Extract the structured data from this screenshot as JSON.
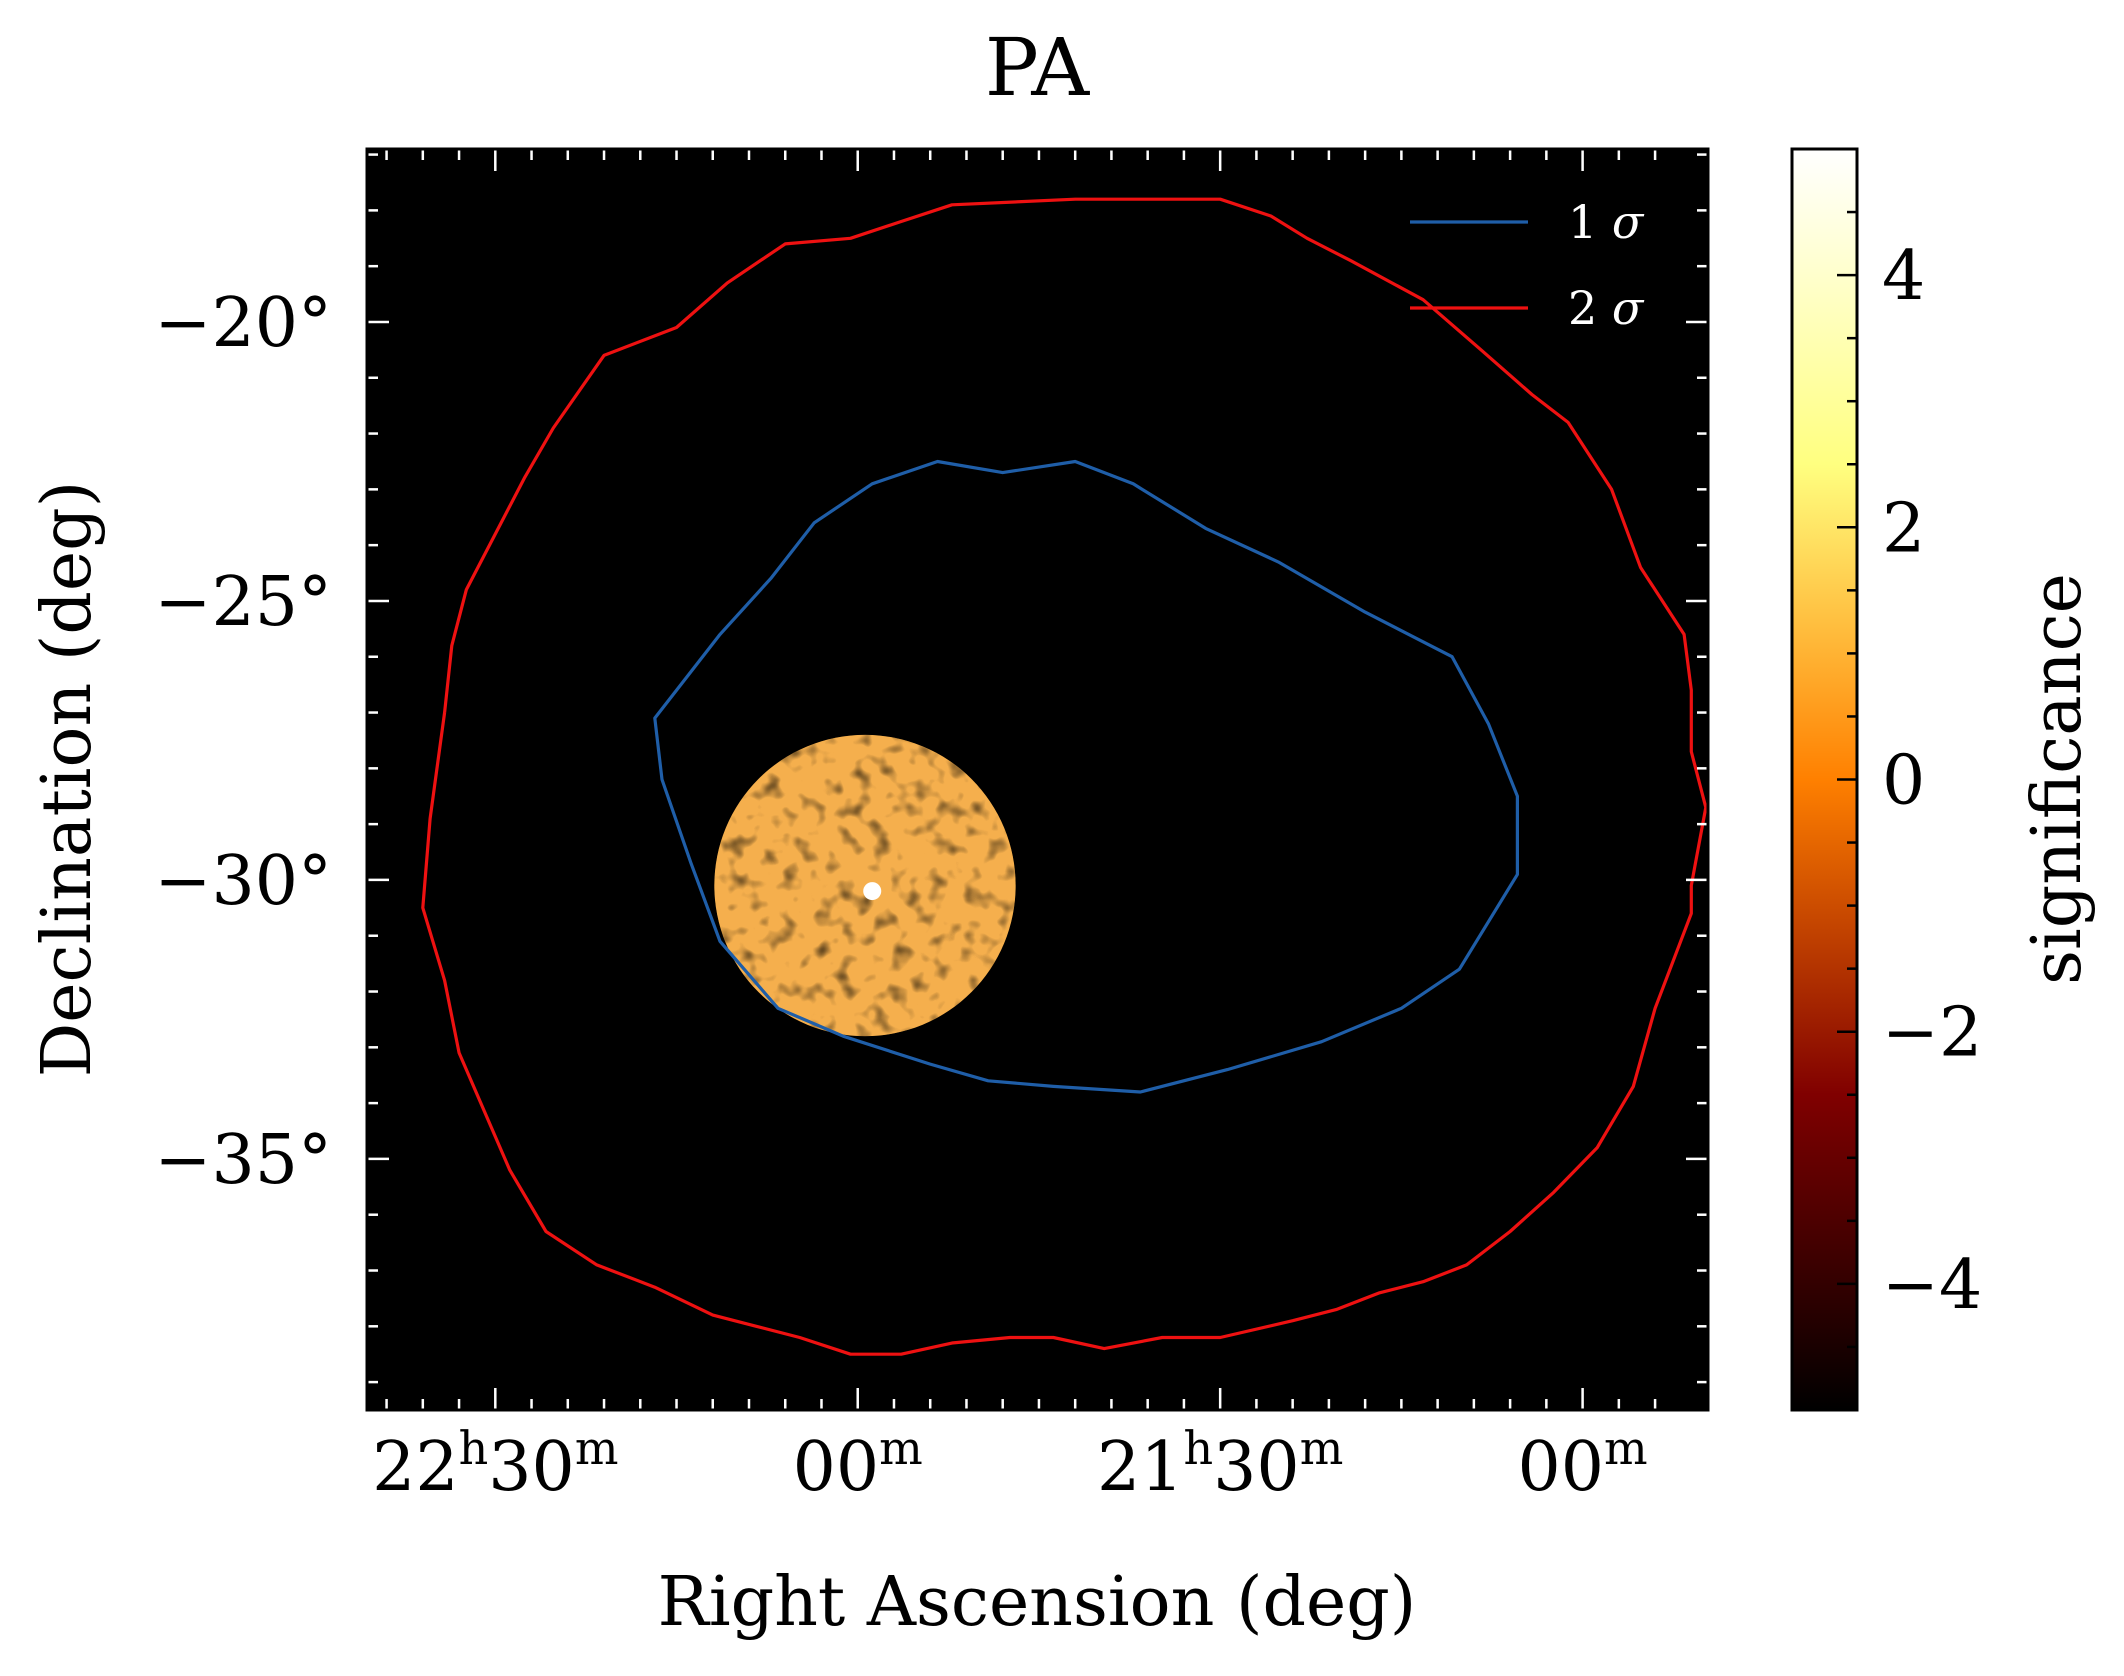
{
  "chart_data": {
    "type": "contour",
    "title": "PA",
    "xlabel": "Right Ascension (deg)",
    "ylabel": "Declination (deg)",
    "colorbar_label": "significance",
    "x_unit": "RA hours (decreasing to right)",
    "xlim": [
      22.677,
      20.827
    ],
    "ylim": [
      -39.5,
      -16.9
    ],
    "x_ticks": [
      {
        "value": 22.5,
        "label_main": "22",
        "label_sup1": "h",
        "label_mid": "30",
        "label_sup2": "m"
      },
      {
        "value": 22.0,
        "label_main": "",
        "label_sup1": "",
        "label_mid": "00",
        "label_sup2": "m"
      },
      {
        "value": 21.5,
        "label_main": "21",
        "label_sup1": "h",
        "label_mid": "30",
        "label_sup2": "m"
      },
      {
        "value": 21.0,
        "label_main": "",
        "label_sup1": "",
        "label_mid": "00",
        "label_sup2": "m"
      }
    ],
    "y_ticks": [
      {
        "value": -20,
        "label": "−20°"
      },
      {
        "value": -25,
        "label": "−25°"
      },
      {
        "value": -30,
        "label": "−30°"
      },
      {
        "value": -35,
        "label": "−35°"
      }
    ],
    "colorbar": {
      "vmin": -5,
      "vmax": 5,
      "colormap": "afmhot",
      "ticks": [
        {
          "value": 4,
          "label": "4"
        },
        {
          "value": 2,
          "label": "2"
        },
        {
          "value": 0,
          "label": "0"
        },
        {
          "value": -2,
          "label": "−2"
        },
        {
          "value": -4,
          "label": "−4"
        }
      ]
    },
    "background_color": "#000000",
    "significance_map": {
      "center_ra": 21.99,
      "center_dec": -30.1,
      "radius_deg": 2.7,
      "hotspot_ra": 21.98,
      "hotspot_dec": -30.2,
      "hotspot_value": 5.0
    },
    "legend": [
      {
        "label_main": "1",
        "label_sym": "σ",
        "color": "#1f5ea8"
      },
      {
        "label_main": "2",
        "label_sym": "σ",
        "color": "#ee1111"
      }
    ],
    "series": [
      {
        "name": "1 σ",
        "color": "#1f5ea8",
        "points": [
          [
            22.19,
            -25.6
          ],
          [
            22.12,
            -24.6
          ],
          [
            22.06,
            -23.6
          ],
          [
            21.98,
            -22.9
          ],
          [
            21.89,
            -22.5
          ],
          [
            21.8,
            -22.7
          ],
          [
            21.7,
            -22.5
          ],
          [
            21.62,
            -22.9
          ],
          [
            21.52,
            -23.7
          ],
          [
            21.42,
            -24.3
          ],
          [
            21.3,
            -25.2
          ],
          [
            21.18,
            -26.0
          ],
          [
            21.13,
            -27.2
          ],
          [
            21.09,
            -28.5
          ],
          [
            21.09,
            -29.9
          ],
          [
            21.17,
            -31.6
          ],
          [
            21.25,
            -32.3
          ],
          [
            21.36,
            -32.9
          ],
          [
            21.49,
            -33.4
          ],
          [
            21.61,
            -33.8
          ],
          [
            21.73,
            -33.7
          ],
          [
            21.82,
            -33.6
          ],
          [
            21.9,
            -33.3
          ],
          [
            22.02,
            -32.8
          ],
          [
            22.11,
            -32.3
          ],
          [
            22.19,
            -31.1
          ],
          [
            22.23,
            -29.7
          ],
          [
            22.27,
            -28.2
          ],
          [
            22.28,
            -27.1
          ],
          [
            22.19,
            -25.6
          ]
        ]
      },
      {
        "name": "2 σ",
        "color": "#ee1111",
        "points": [
          [
            22.57,
            -27.0
          ],
          [
            22.56,
            -25.8
          ],
          [
            22.54,
            -24.8
          ],
          [
            22.5,
            -23.8
          ],
          [
            22.46,
            -22.8
          ],
          [
            22.42,
            -21.9
          ],
          [
            22.35,
            -20.6
          ],
          [
            22.25,
            -20.1
          ],
          [
            22.18,
            -19.3
          ],
          [
            22.1,
            -18.6
          ],
          [
            22.01,
            -18.5
          ],
          [
            21.94,
            -18.2
          ],
          [
            21.87,
            -17.9
          ],
          [
            21.7,
            -17.8
          ],
          [
            21.58,
            -17.8
          ],
          [
            21.5,
            -17.8
          ],
          [
            21.43,
            -18.1
          ],
          [
            21.38,
            -18.5
          ],
          [
            21.32,
            -18.9
          ],
          [
            21.22,
            -19.6
          ],
          [
            21.14,
            -20.5
          ],
          [
            21.07,
            -21.3
          ],
          [
            21.02,
            -21.8
          ],
          [
            20.96,
            -23.0
          ],
          [
            20.92,
            -24.4
          ],
          [
            20.86,
            -25.6
          ],
          [
            20.85,
            -26.6
          ],
          [
            20.85,
            -27.7
          ],
          [
            20.83,
            -28.7
          ],
          [
            20.85,
            -30.1
          ],
          [
            20.85,
            -30.6
          ],
          [
            20.9,
            -32.3
          ],
          [
            20.93,
            -33.7
          ],
          [
            20.98,
            -34.8
          ],
          [
            21.04,
            -35.6
          ],
          [
            21.1,
            -36.3
          ],
          [
            21.16,
            -36.9
          ],
          [
            21.22,
            -37.2
          ],
          [
            21.28,
            -37.4
          ],
          [
            21.34,
            -37.7
          ],
          [
            21.4,
            -37.9
          ],
          [
            21.5,
            -38.2
          ],
          [
            21.58,
            -38.2
          ],
          [
            21.66,
            -38.4
          ],
          [
            21.73,
            -38.2
          ],
          [
            21.79,
            -38.2
          ],
          [
            21.87,
            -38.3
          ],
          [
            21.94,
            -38.5
          ],
          [
            22.01,
            -38.5
          ],
          [
            22.08,
            -38.2
          ],
          [
            22.14,
            -38.0
          ],
          [
            22.2,
            -37.8
          ],
          [
            22.28,
            -37.3
          ],
          [
            22.36,
            -36.9
          ],
          [
            22.43,
            -36.3
          ],
          [
            22.48,
            -35.2
          ],
          [
            22.55,
            -33.1
          ],
          [
            22.57,
            -31.8
          ],
          [
            22.6,
            -30.5
          ],
          [
            22.59,
            -28.9
          ],
          [
            22.57,
            -27.0
          ]
        ]
      }
    ]
  }
}
